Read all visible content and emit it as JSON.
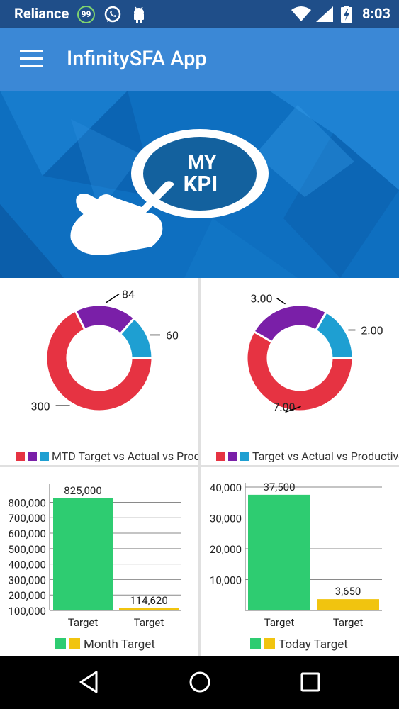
{
  "status_bar": {
    "carrier": "Reliance",
    "notification_count": "99",
    "time": "8:03",
    "icons": [
      "whatsapp-icon",
      "android-icon",
      "wifi-icon",
      "signal-icon",
      "battery-icon"
    ]
  },
  "app_bar": {
    "title": "InfinitySFA App",
    "menu_icon": "hamburger-menu-icon"
  },
  "banner": {
    "line1": "MY",
    "line2": "KPI"
  },
  "colors": {
    "red": "#e63342",
    "purple": "#7a1fa8",
    "blue": "#1e9fd2",
    "green": "#2ecc71",
    "yellow": "#f1c40f",
    "appbar": "#3b88d6",
    "statusbar": "#1f4e89"
  },
  "chart_data": [
    {
      "type": "pie",
      "legend": "MTD Target vs Actual vs Prod",
      "slices": [
        {
          "value": 300,
          "label": "300",
          "color": "#e63342"
        },
        {
          "value": 84,
          "label": "84",
          "color": "#7a1fa8"
        },
        {
          "value": 60,
          "label": "60",
          "color": "#1e9fd2"
        }
      ]
    },
    {
      "type": "pie",
      "legend": "Target vs Actual vs Productive",
      "slices": [
        {
          "value": 7.0,
          "label": "7.00",
          "color": "#e63342"
        },
        {
          "value": 3.0,
          "label": "3.00",
          "color": "#7a1fa8"
        },
        {
          "value": 2.0,
          "label": "2.00",
          "color": "#1e9fd2"
        }
      ]
    },
    {
      "type": "bar",
      "legend": "Month Target",
      "categories": [
        "Target",
        "Target"
      ],
      "values": [
        825000,
        114620
      ],
      "value_labels": [
        "825,000",
        "114,620"
      ],
      "colors": [
        "#2ecc71",
        "#f1c40f"
      ],
      "ylim": [
        100000,
        825000
      ],
      "yticks": [
        "100,000",
        "200,000",
        "300,000",
        "400,000",
        "500,000",
        "600,000",
        "700,000",
        "800,000"
      ]
    },
    {
      "type": "bar",
      "legend": "Today Target",
      "categories": [
        "Target",
        "Target"
      ],
      "values": [
        37500,
        3650
      ],
      "value_labels": [
        "37,500",
        "3,650"
      ],
      "colors": [
        "#2ecc71",
        "#f1c40f"
      ],
      "ylim": [
        0,
        40000
      ],
      "yticks": [
        "10,000",
        "20,000",
        "30,000",
        "40,000"
      ]
    }
  ]
}
